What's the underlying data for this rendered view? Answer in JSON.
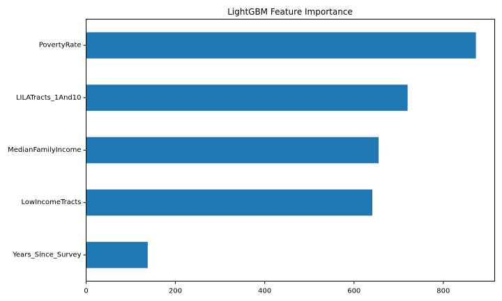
{
  "chart_data": {
    "type": "bar",
    "orientation": "horizontal",
    "title": "LightGBM Feature Importance",
    "xlabel": "",
    "ylabel": "",
    "categories": [
      "PovertyRate",
      "LILATracts_1And10",
      "MedianFamilyIncome",
      "LowIncomeTracts",
      "Years_Since_Survey"
    ],
    "values": [
      873,
      720,
      655,
      641,
      138
    ],
    "xlim": [
      0,
      915
    ],
    "xticks": [
      0,
      200,
      400,
      600,
      800
    ],
    "grid": false,
    "legend": "none",
    "bar_color": "#1f77b4"
  }
}
